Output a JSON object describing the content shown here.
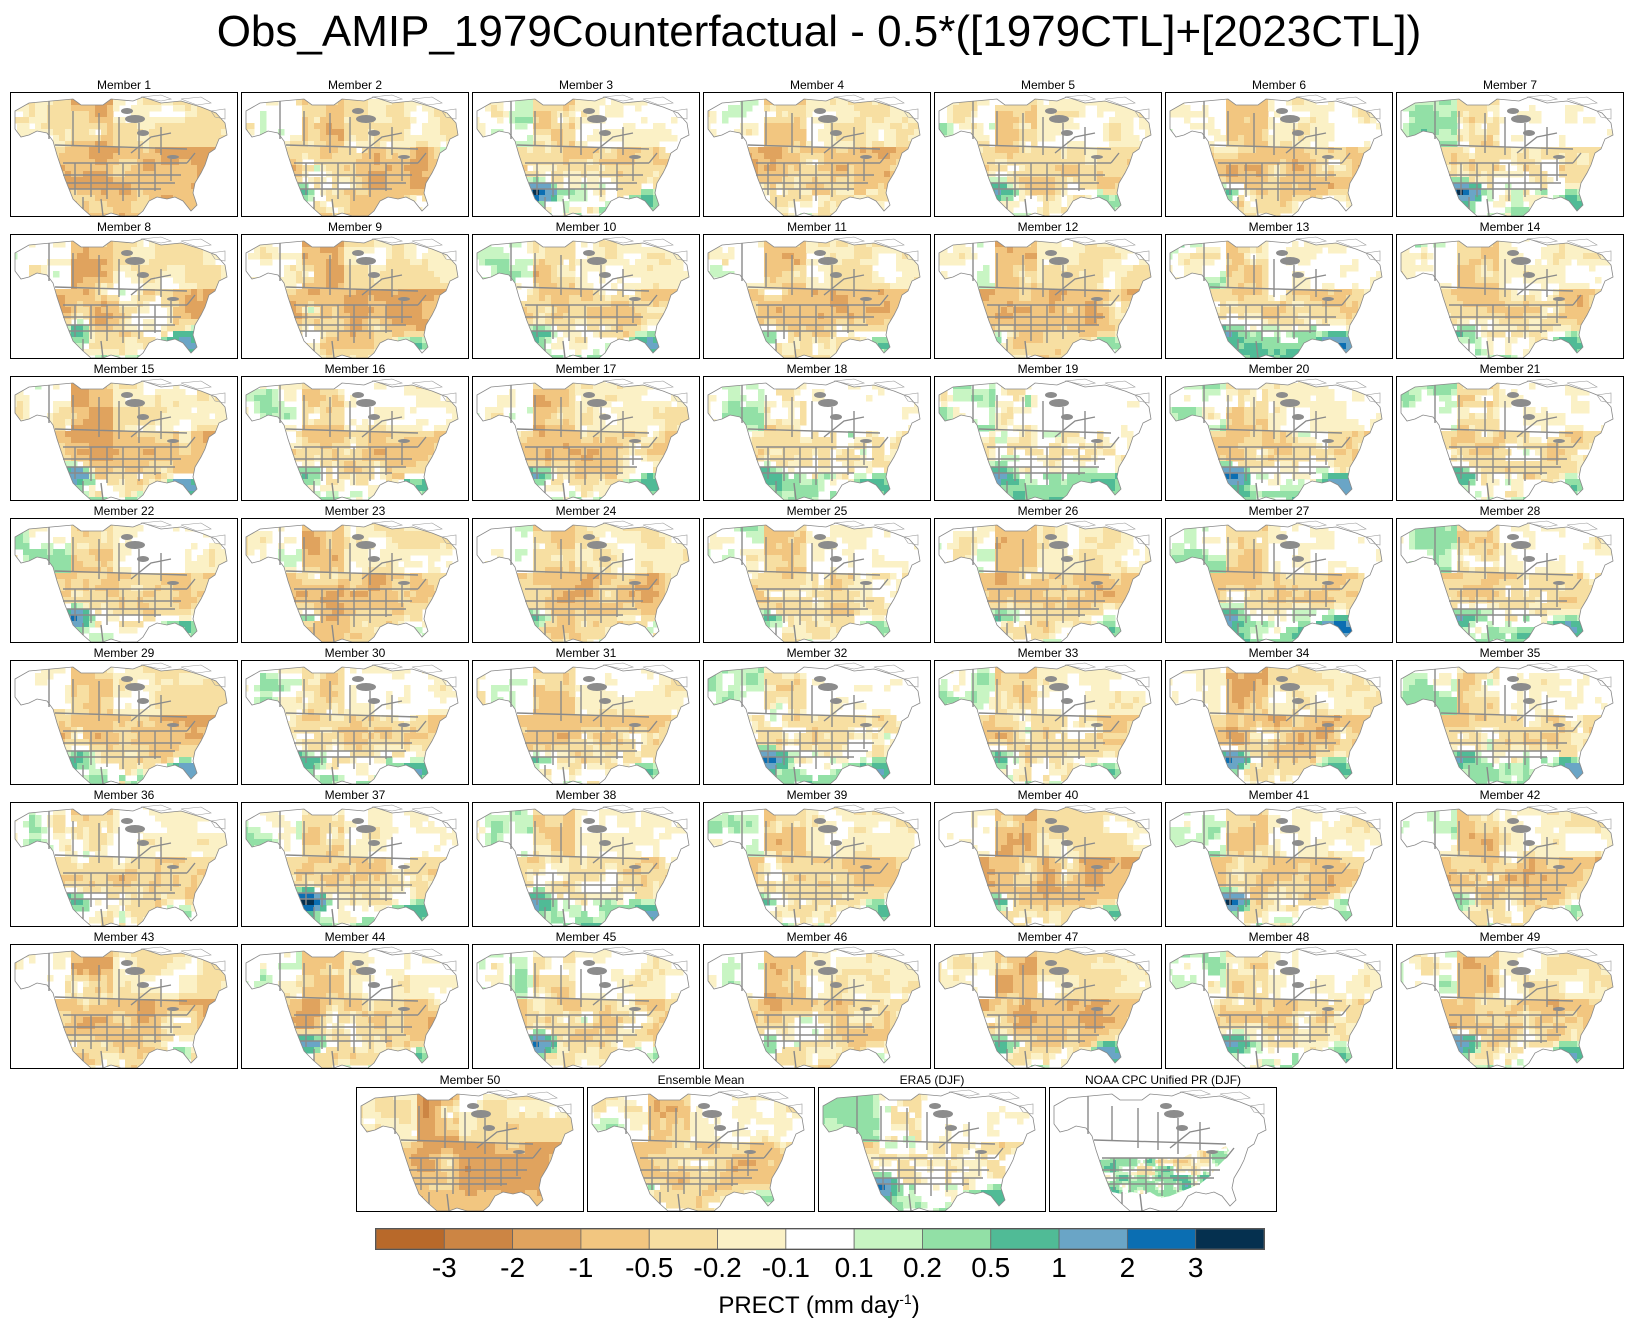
{
  "title": "Obs_AMIP_1979Counterfactual - 0.5*([1979CTL]+[2023CTL])",
  "panels": [
    {
      "label": "Member 1",
      "tone": -0.8,
      "sw": 0.4,
      "se": 0.2
    },
    {
      "label": "Member 2",
      "tone": -0.6,
      "sw": 0.5,
      "se": 0.3
    },
    {
      "label": "Member 3",
      "tone": -0.3,
      "sw": 1.6,
      "se": 0.5
    },
    {
      "label": "Member 4",
      "tone": -0.5,
      "sw": 0.3,
      "se": 0.4
    },
    {
      "label": "Member 5",
      "tone": -0.4,
      "sw": 0.6,
      "se": 0.4
    },
    {
      "label": "Member 6",
      "tone": -0.5,
      "sw": 0.5,
      "se": 0.3
    },
    {
      "label": "Member 7",
      "tone": -0.2,
      "sw": 1.5,
      "se": 0.6
    },
    {
      "label": "Member 8",
      "tone": -0.6,
      "sw": 0.4,
      "se": 1.2
    },
    {
      "label": "Member 9",
      "tone": -0.7,
      "sw": 0.3,
      "se": 0.8
    },
    {
      "label": "Member 10",
      "tone": -0.4,
      "sw": 0.5,
      "se": 0.9
    },
    {
      "label": "Member 11",
      "tone": -0.5,
      "sw": 0.5,
      "se": 0.5
    },
    {
      "label": "Member 12",
      "tone": -0.6,
      "sw": 0.3,
      "se": 0.4
    },
    {
      "label": "Member 13",
      "tone": -0.3,
      "sw": 0.5,
      "se": 1.4
    },
    {
      "label": "Member 14",
      "tone": -0.4,
      "sw": 0.4,
      "se": 0.7
    },
    {
      "label": "Member 15",
      "tone": -0.7,
      "sw": 1.0,
      "se": 1.3
    },
    {
      "label": "Member 16",
      "tone": -0.4,
      "sw": 0.5,
      "se": 0.6
    },
    {
      "label": "Member 17",
      "tone": -0.5,
      "sw": 0.6,
      "se": 0.9
    },
    {
      "label": "Member 18",
      "tone": -0.2,
      "sw": 0.5,
      "se": 0.5
    },
    {
      "label": "Member 19",
      "tone": -0.1,
      "sw": 0.8,
      "se": 0.6
    },
    {
      "label": "Member 20",
      "tone": -0.3,
      "sw": 1.4,
      "se": 1.1
    },
    {
      "label": "Member 21",
      "tone": -0.3,
      "sw": 0.5,
      "se": 0.4
    },
    {
      "label": "Member 22",
      "tone": -0.3,
      "sw": 1.0,
      "se": 0.4
    },
    {
      "label": "Member 23",
      "tone": -0.6,
      "sw": 0.3,
      "se": 0.3
    },
    {
      "label": "Member 24",
      "tone": -0.5,
      "sw": 0.6,
      "se": 0.3
    },
    {
      "label": "Member 25",
      "tone": -0.4,
      "sw": 0.4,
      "se": 0.4
    },
    {
      "label": "Member 26",
      "tone": -0.5,
      "sw": 0.4,
      "se": 0.5
    },
    {
      "label": "Member 27",
      "tone": -0.3,
      "sw": 0.6,
      "se": 1.5
    },
    {
      "label": "Member 28",
      "tone": -0.3,
      "sw": 0.5,
      "se": 0.8
    },
    {
      "label": "Member 29",
      "tone": -0.6,
      "sw": 0.4,
      "se": 1.3
    },
    {
      "label": "Member 30",
      "tone": -0.3,
      "sw": 0.5,
      "se": 0.7
    },
    {
      "label": "Member 31",
      "tone": -0.4,
      "sw": 0.5,
      "se": 0.5
    },
    {
      "label": "Member 32",
      "tone": -0.2,
      "sw": 1.3,
      "se": 0.6
    },
    {
      "label": "Member 33",
      "tone": -0.4,
      "sw": 0.4,
      "se": 0.5
    },
    {
      "label": "Member 34",
      "tone": -0.6,
      "sw": 1.2,
      "se": 0.8
    },
    {
      "label": "Member 35",
      "tone": -0.3,
      "sw": 0.5,
      "se": 1.0
    },
    {
      "label": "Member 36",
      "tone": -0.4,
      "sw": 0.5,
      "se": 0.4
    },
    {
      "label": "Member 37",
      "tone": -0.3,
      "sw": 1.9,
      "se": 0.5
    },
    {
      "label": "Member 38",
      "tone": -0.3,
      "sw": 0.7,
      "se": 0.9
    },
    {
      "label": "Member 39",
      "tone": -0.4,
      "sw": 0.4,
      "se": 0.5
    },
    {
      "label": "Member 40",
      "tone": -0.7,
      "sw": 0.7,
      "se": 0.8
    },
    {
      "label": "Member 41",
      "tone": -0.4,
      "sw": 1.6,
      "se": 0.5
    },
    {
      "label": "Member 42",
      "tone": -0.5,
      "sw": 0.4,
      "se": 0.5
    },
    {
      "label": "Member 43",
      "tone": -0.6,
      "sw": 0.3,
      "se": 0.4
    },
    {
      "label": "Member 44",
      "tone": -0.5,
      "sw": 1.1,
      "se": 0.5
    },
    {
      "label": "Member 45",
      "tone": -0.4,
      "sw": 1.2,
      "se": 0.4
    },
    {
      "label": "Member 46",
      "tone": -0.5,
      "sw": 0.3,
      "se": 0.4
    },
    {
      "label": "Member 47",
      "tone": -0.7,
      "sw": 0.6,
      "se": 1.3
    },
    {
      "label": "Member 48",
      "tone": -0.3,
      "sw": 0.9,
      "se": 0.5
    },
    {
      "label": "Member 49",
      "tone": -0.5,
      "sw": 1.1,
      "se": 0.9
    },
    {
      "label": "Member 50",
      "tone": -0.9,
      "sw": 0.2,
      "se": 0.2
    },
    {
      "label": "Ensemble Mean",
      "tone": -0.5,
      "sw": 0.4,
      "se": 0.4
    },
    {
      "label": "ERA5 (DJF)",
      "tone": -0.2,
      "sw": 1.0,
      "se": 0.6
    },
    {
      "label": "NOAA CPC Unified PR (DJF)",
      "tone": 0.1,
      "sw": 0.3,
      "se": 0.3,
      "us_only": true
    }
  ],
  "colorbar": {
    "colors": [
      "#b8692a",
      "#cc8544",
      "#e0a35e",
      "#f2c680",
      "#f7dfa2",
      "#fbf1c6",
      "#ffffff",
      "#c8f5c3",
      "#92e0a6",
      "#50bb96",
      "#6aa5c6",
      "#0b6eb2",
      "#05304f"
    ],
    "ticks": [
      "-3",
      "-2",
      "-1",
      "-0.5",
      "-0.2",
      "-0.1",
      "0.1",
      "0.2",
      "0.5",
      "1",
      "2",
      "3"
    ],
    "label": "PRECT (mm day",
    "label_sup": "-1",
    "label_end": ")"
  }
}
